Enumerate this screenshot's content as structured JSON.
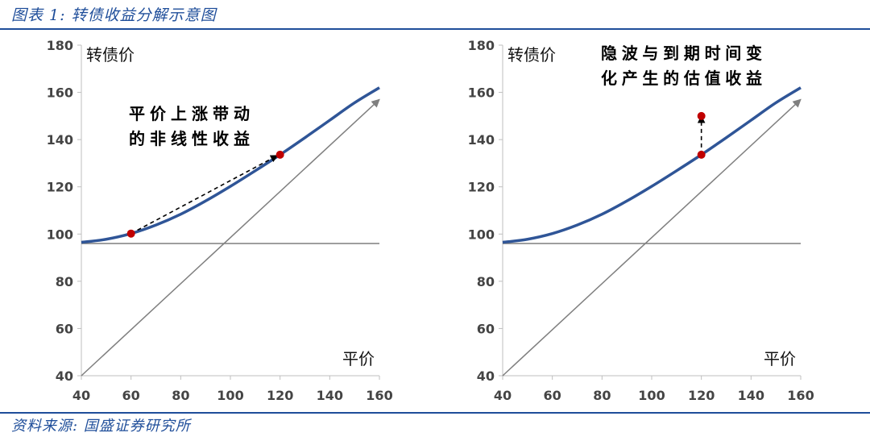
{
  "figure_title": "图表 1:  转债收益分解示意图",
  "source": "资料来源:  国盛证券研究所",
  "colors": {
    "curve": "#2f5597",
    "point": "#c00000",
    "reference": "#7f7f7f",
    "heading": "#1f4e9a"
  },
  "chart_data": [
    {
      "type": "line",
      "xlabel": "平价",
      "ylabel": "转债价",
      "xlim": [
        40,
        160
      ],
      "ylim": [
        40,
        180
      ],
      "xticks": [
        "40",
        "60",
        "80",
        "100",
        "120",
        "140",
        "160"
      ],
      "yticks": [
        "40",
        "60",
        "80",
        "100",
        "120",
        "140",
        "160",
        "180"
      ],
      "floor_level": 96,
      "diagonal": [
        [
          40,
          40
        ],
        [
          160,
          157
        ]
      ],
      "curve": {
        "x": [
          40,
          50,
          60,
          70,
          80,
          90,
          100,
          110,
          120,
          130,
          140,
          150,
          160
        ],
        "y": [
          96.5,
          97.8,
          100.2,
          103.8,
          108.4,
          114,
          120.2,
          126.8,
          133.6,
          140.8,
          148.2,
          155.6,
          162
        ]
      },
      "points": [
        {
          "x": 60,
          "y": 100.2
        },
        {
          "x": 120,
          "y": 133.6
        }
      ],
      "arrow": {
        "from": [
          60,
          100.2
        ],
        "to": [
          119,
          133.3
        ]
      },
      "annotation": [
        "平价上涨带动",
        "的非线性收益"
      ]
    },
    {
      "type": "line",
      "xlabel": "平价",
      "ylabel": "转债价",
      "xlim": [
        40,
        160
      ],
      "ylim": [
        40,
        180
      ],
      "xticks": [
        "40",
        "60",
        "80",
        "100",
        "120",
        "140",
        "160"
      ],
      "yticks": [
        "40",
        "60",
        "80",
        "100",
        "120",
        "140",
        "160",
        "180"
      ],
      "floor_level": 96,
      "diagonal": [
        [
          40,
          40
        ],
        [
          160,
          157
        ]
      ],
      "curve": {
        "x": [
          40,
          50,
          60,
          70,
          80,
          90,
          100,
          110,
          120,
          130,
          140,
          150,
          160
        ],
        "y": [
          96.5,
          97.8,
          100.2,
          103.8,
          108.4,
          114,
          120.2,
          126.8,
          133.6,
          140.8,
          148.2,
          155.6,
          162
        ]
      },
      "points": [
        {
          "x": 120,
          "y": 133.6
        },
        {
          "x": 120,
          "y": 150
        }
      ],
      "arrow": {
        "from": [
          120,
          133.6
        ],
        "to": [
          120,
          150
        ]
      },
      "annotation": [
        "隐波与到期时间变",
        "化产生的估值收益"
      ]
    }
  ]
}
